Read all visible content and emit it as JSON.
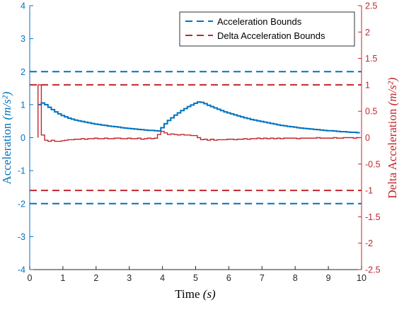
{
  "chart_data": {
    "type": "line",
    "x": [
      0.25,
      0.35,
      0.45,
      0.55,
      0.65,
      0.75,
      0.85,
      0.95,
      1.05,
      1.15,
      1.25,
      1.35,
      1.45,
      1.55,
      1.65,
      1.75,
      1.85,
      1.95,
      2.05,
      2.15,
      2.25,
      2.35,
      2.45,
      2.55,
      2.65,
      2.75,
      2.85,
      2.95,
      3.05,
      3.15,
      3.25,
      3.35,
      3.45,
      3.55,
      3.65,
      3.75,
      3.85,
      3.95,
      4.05,
      4.15,
      4.25,
      4.35,
      4.45,
      4.55,
      4.65,
      4.75,
      4.85,
      4.95,
      5.05,
      5.15,
      5.25,
      5.35,
      5.45,
      5.55,
      5.65,
      5.75,
      5.85,
      5.95,
      6.05,
      6.15,
      6.25,
      6.35,
      6.45,
      6.55,
      6.65,
      6.75,
      6.85,
      6.95,
      7.05,
      7.15,
      7.25,
      7.35,
      7.45,
      7.55,
      7.65,
      7.75,
      7.85,
      7.95,
      8.05,
      8.15,
      8.25,
      8.35,
      8.45,
      8.55,
      8.65,
      8.75,
      8.85,
      8.95,
      9.05,
      9.15,
      9.25,
      9.35,
      9.45,
      9.55,
      9.65,
      9.75,
      9.85
    ],
    "series": [
      {
        "axis": "left",
        "color": "#0072BD",
        "values": [
          1.0,
          1.05,
          1.0,
          0.92,
          0.85,
          0.78,
          0.72,
          0.67,
          0.63,
          0.59,
          0.56,
          0.53,
          0.51,
          0.49,
          0.47,
          0.45,
          0.43,
          0.41,
          0.4,
          0.38,
          0.37,
          0.35,
          0.34,
          0.33,
          0.32,
          0.3,
          0.29,
          0.28,
          0.27,
          0.26,
          0.25,
          0.24,
          0.23,
          0.22,
          0.22,
          0.21,
          0.2,
          0.3,
          0.42,
          0.52,
          0.6,
          0.68,
          0.75,
          0.82,
          0.88,
          0.94,
          0.99,
          1.04,
          1.08,
          1.07,
          1.03,
          0.98,
          0.94,
          0.9,
          0.86,
          0.82,
          0.78,
          0.75,
          0.72,
          0.69,
          0.66,
          0.63,
          0.6,
          0.58,
          0.55,
          0.53,
          0.51,
          0.49,
          0.47,
          0.45,
          0.43,
          0.41,
          0.39,
          0.37,
          0.36,
          0.34,
          0.33,
          0.32,
          0.3,
          0.29,
          0.28,
          0.27,
          0.26,
          0.25,
          0.24,
          0.23,
          0.22,
          0.21,
          0.21,
          0.2,
          0.19,
          0.18,
          0.18,
          0.17,
          0.16,
          0.16,
          0.15
        ]
      },
      {
        "axis": "right",
        "color": "#C1272D",
        "values": [
          1.0,
          0.05,
          -0.05,
          -0.07,
          -0.05,
          -0.07,
          -0.07,
          -0.06,
          -0.05,
          -0.04,
          -0.04,
          -0.03,
          -0.03,
          -0.02,
          -0.03,
          -0.02,
          -0.02,
          -0.01,
          -0.02,
          -0.02,
          -0.01,
          -0.02,
          -0.02,
          -0.01,
          -0.01,
          -0.02,
          -0.02,
          -0.01,
          -0.02,
          -0.02,
          -0.01,
          -0.03,
          -0.02,
          -0.01,
          -0.02,
          -0.01,
          0.06,
          0.12,
          0.09,
          0.06,
          0.07,
          0.06,
          0.05,
          0.06,
          0.05,
          0.05,
          0.04,
          0.04,
          0.0,
          -0.04,
          -0.03,
          -0.05,
          -0.03,
          -0.05,
          -0.04,
          -0.04,
          -0.04,
          -0.03,
          -0.03,
          -0.04,
          -0.03,
          -0.03,
          -0.02,
          -0.03,
          -0.02,
          -0.02,
          -0.01,
          -0.02,
          -0.01,
          -0.02,
          -0.01,
          -0.02,
          -0.01,
          -0.02,
          -0.01,
          -0.01,
          -0.01,
          -0.01,
          -0.02,
          -0.01,
          -0.01,
          -0.01,
          -0.01,
          -0.01,
          0.0,
          -0.01,
          -0.01,
          -0.01,
          -0.01,
          0.0,
          -0.01,
          -0.01,
          0.0,
          0.0,
          0.0,
          -0.01,
          0.0
        ]
      }
    ],
    "bounds": [
      {
        "name": "Acceleration Bounds",
        "axis": "left",
        "values": [
          2,
          -2
        ],
        "color": "#0072BD",
        "style": "dashed"
      },
      {
        "name": "Delta Acceleration Bounds",
        "axis": "right",
        "values": [
          1,
          -1
        ],
        "color": "#C1272D",
        "style": "dashed"
      }
    ],
    "xlabel": "Time",
    "xlabel_unit": "(s)",
    "ylabel": "Acceleration",
    "ylabel_unit": "(m/s²)",
    "y2label": "Delta Acceleration",
    "y2label_unit": "(m/s²)",
    "xlim": [
      0,
      10
    ],
    "ylim": [
      -4,
      4
    ],
    "y2lim": [
      -2.5,
      2.5
    ],
    "xticks": [
      "0",
      "1",
      "2",
      "3",
      "4",
      "5",
      "6",
      "7",
      "8",
      "9",
      "10"
    ],
    "yticks": [
      "-4",
      "-3",
      "-2",
      "-1",
      "0",
      "1",
      "2",
      "3",
      "4"
    ],
    "y2ticks": [
      "-2.5",
      "-2",
      "-1.5",
      "-1",
      "-0.5",
      "0",
      "0.5",
      "1",
      "1.5",
      "2",
      "2.5"
    ],
    "legend_position": "top-right",
    "grid": false
  }
}
